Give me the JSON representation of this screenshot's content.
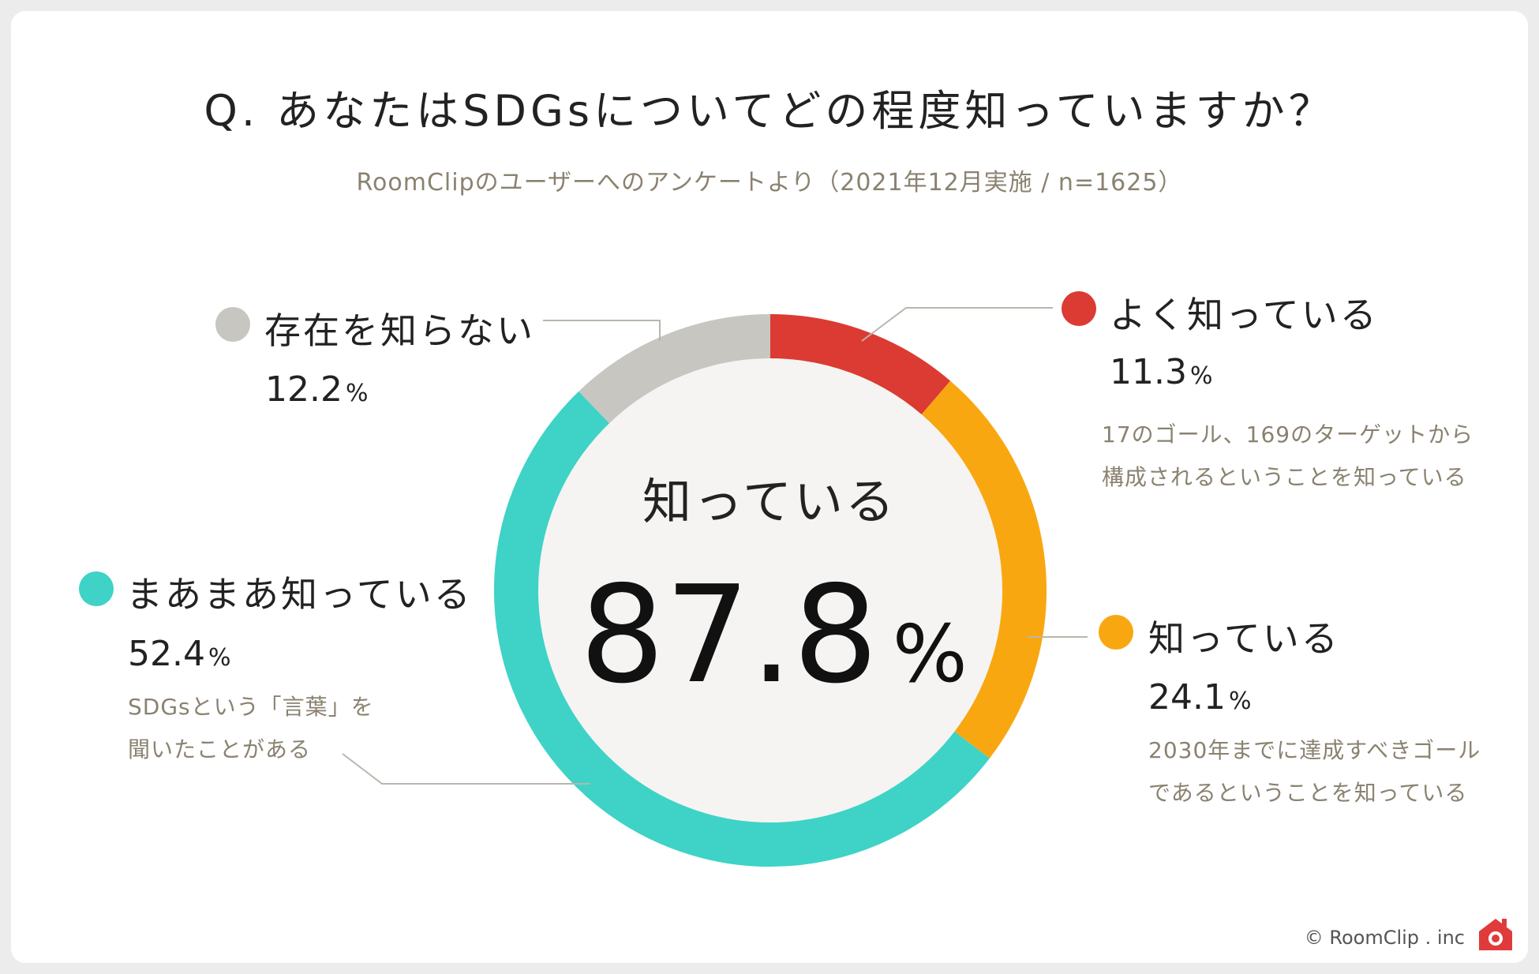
{
  "title": "Q. あなたはSDGsについてどの程度知っていますか？",
  "subtitle": "RoomClipのユーザーへのアンケートより（2021年12月実施 / n=1625）",
  "center": {
    "label": "知っている",
    "value": "87.8",
    "unit": "%"
  },
  "credit": "© RoomClip . inc",
  "logo_icon": "roomclip-house-camera-icon",
  "chart_data": {
    "type": "pie",
    "variant": "donut",
    "start": "top",
    "direction": "clockwise",
    "slices": [
      {
        "name": "よく知っている",
        "value": 11.3,
        "pct_text": "11.3",
        "pct_unit": "%",
        "color": "#db3b32",
        "note": [
          "17のゴール、169のターゲットから",
          "構成されるということを知っている"
        ]
      },
      {
        "name": "知っている",
        "value": 24.1,
        "pct_text": "24.1",
        "pct_unit": "%",
        "color": "#f9a711",
        "note": [
          "2030年までに達成すべきゴール",
          "であるということを知っている"
        ]
      },
      {
        "name": "まあまあ知っている",
        "value": 52.4,
        "pct_text": "52.4",
        "pct_unit": "%",
        "color": "#3ed3c6",
        "note": [
          "SDGsという「言葉」を",
          "聞いたことがある"
        ]
      },
      {
        "name": "存在を知らない",
        "value": 12.2,
        "pct_text": "12.2",
        "pct_unit": "%",
        "color": "#c8c6c1",
        "note": []
      }
    ]
  }
}
